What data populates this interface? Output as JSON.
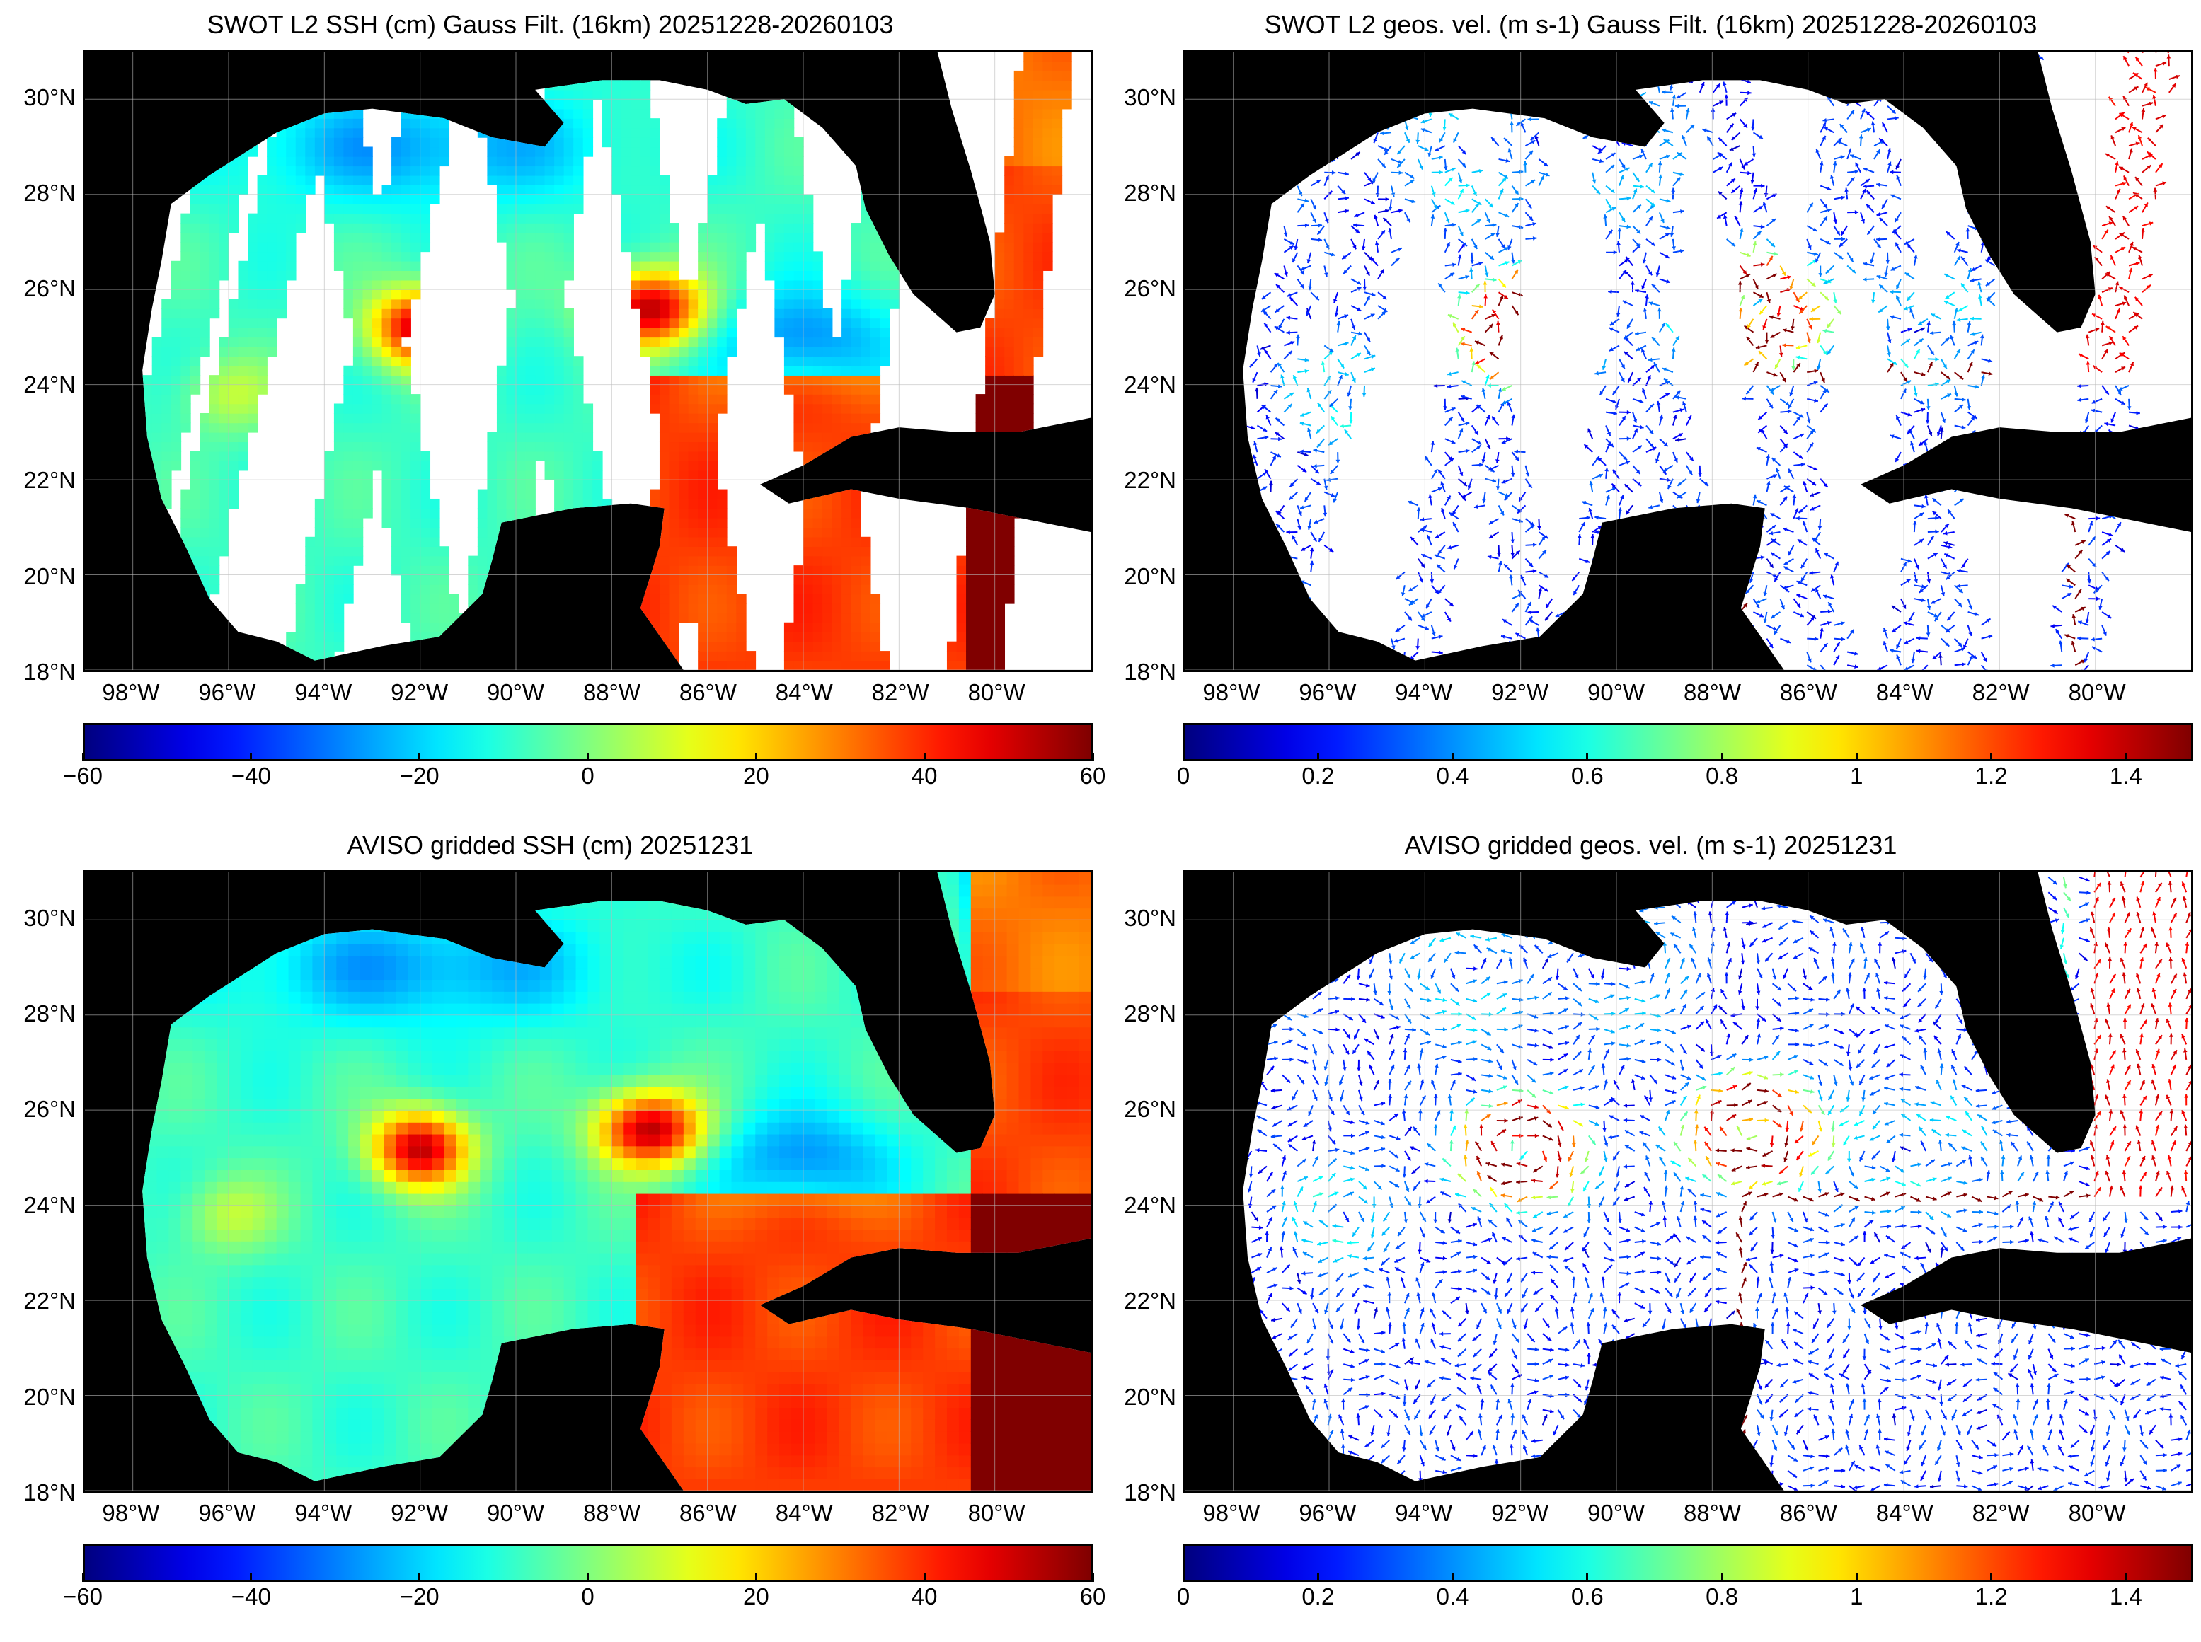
{
  "panels": [
    {
      "id": "swot-ssh",
      "title": "SWOT L2 SSH (cm) Gauss Filt. (16km) 20251228-20260103",
      "kind": "ssh-swath",
      "colorbar": {
        "ticks": [
          "−60",
          "−40",
          "−20",
          "0",
          "20",
          "40",
          "60"
        ],
        "min": -60,
        "max": 60
      }
    },
    {
      "id": "swot-vel",
      "title": "SWOT L2 geos. vel. (m s-1) Gauss Filt. (16km) 20251228-20260103",
      "kind": "vel-swath",
      "colorbar": {
        "ticks": [
          "0",
          "0.2",
          "0.4",
          "0.6",
          "0.8",
          "1",
          "1.2",
          "1.4"
        ],
        "min": 0,
        "max": 1.5
      }
    },
    {
      "id": "aviso-ssh",
      "title": "AVISO gridded SSH (cm) 20251231",
      "kind": "ssh-grid",
      "colorbar": {
        "ticks": [
          "−60",
          "−40",
          "−20",
          "0",
          "20",
          "40",
          "60"
        ],
        "min": -60,
        "max": 60
      }
    },
    {
      "id": "aviso-vel",
      "title": "AVISO gridded geos. vel. (m s-1)  20251231",
      "kind": "vel-grid",
      "colorbar": {
        "ticks": [
          "0",
          "0.2",
          "0.4",
          "0.6",
          "0.8",
          "1",
          "1.2",
          "1.4"
        ],
        "min": 0,
        "max": 1.5
      }
    }
  ],
  "lat_labels": [
    "30°N",
    "28°N",
    "26°N",
    "24°N",
    "22°N",
    "20°N",
    "18°N"
  ],
  "lon_labels": [
    "98°W",
    "96°W",
    "94°W",
    "92°W",
    "90°W",
    "88°W",
    "86°W",
    "84°W",
    "82°W",
    "80°W"
  ],
  "map_extent": {
    "lon_min": -99,
    "lon_max": -78,
    "lat_min": 18,
    "lat_max": 31
  },
  "colormap": "jet",
  "colors": {
    "land": "#000000",
    "no_data": "#ffffff",
    "grid": "#bbbbbb"
  }
}
